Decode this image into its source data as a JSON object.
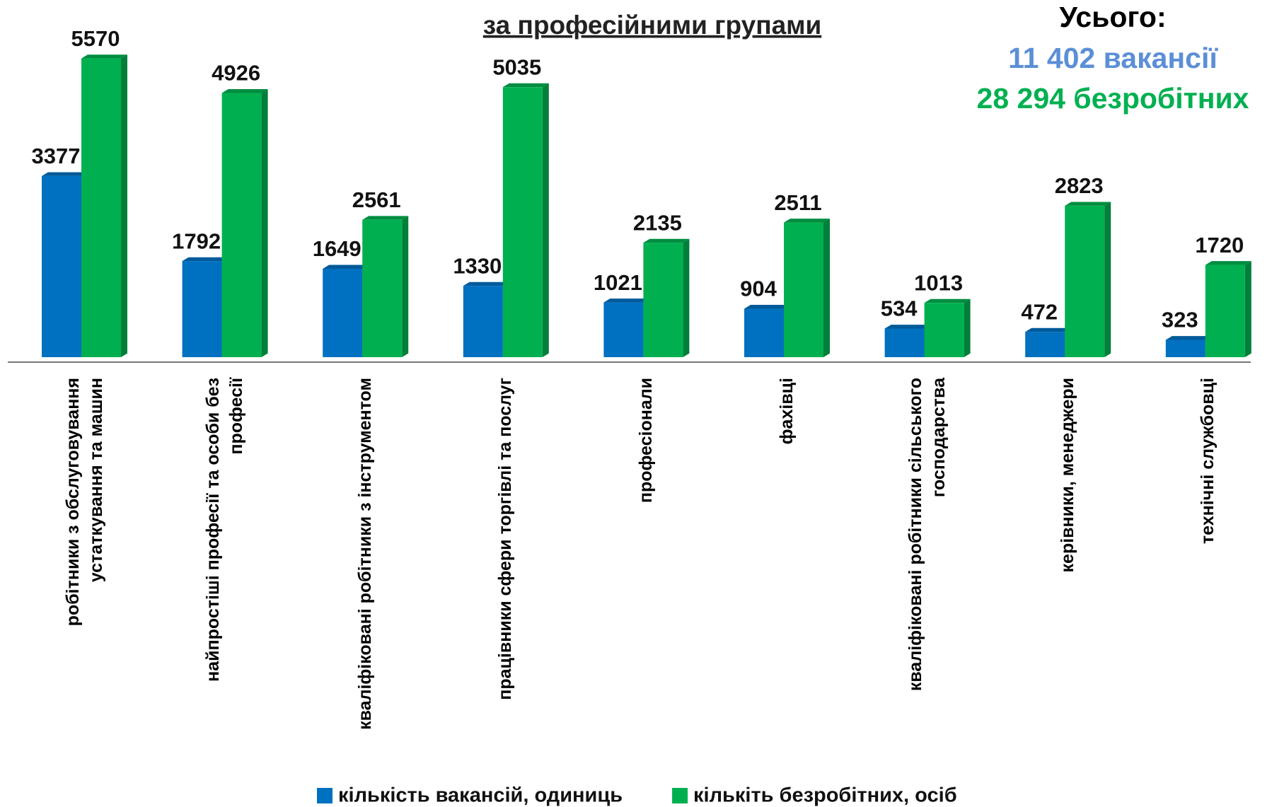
{
  "chart_data": {
    "type": "bar",
    "title": "за професійними групами",
    "annotations": [
      "Усього:",
      "11 402 вакансії",
      "28 294 безробітних"
    ],
    "categories": [
      "робітники з обслуговування устаткування та машин",
      "найпростіші професії та особи без професії",
      "кваліфіковані робітники з інструментом",
      "працівники сфери торгівлі та послуг",
      "професіонали",
      "фахівці",
      "кваліфіковані робітники сільського господарства",
      "керівники, менеджери",
      "технічні службовці"
    ],
    "series": [
      {
        "name": "кількість вакансій, одиниць",
        "color": "#0070c0",
        "values": [
          3377,
          1792,
          1649,
          1330,
          1021,
          904,
          534,
          472,
          323
        ]
      },
      {
        "name": "кількіть безробітних, осіб",
        "color": "#00b050",
        "values": [
          5570,
          4926,
          2561,
          5035,
          2135,
          2511,
          1013,
          2823,
          1720
        ]
      }
    ],
    "ylim": [
      0,
      6000
    ],
    "legend": "bottom"
  }
}
